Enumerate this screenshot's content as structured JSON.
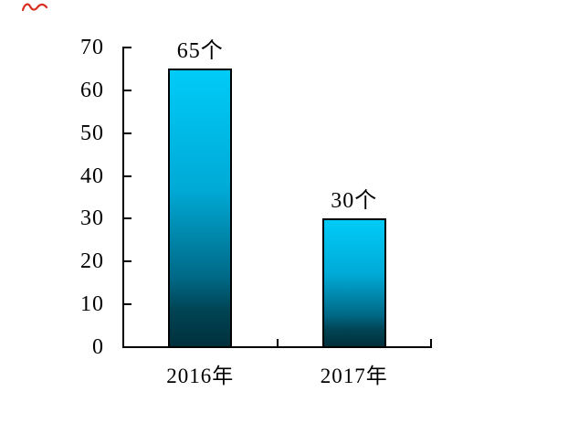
{
  "chart_data": {
    "type": "bar",
    "categories": [
      "2016年",
      "2017年"
    ],
    "values": [
      65,
      30
    ],
    "value_labels": [
      "65个",
      "30个"
    ],
    "unit": "个",
    "y_tick_labels": [
      "70",
      "60",
      "50",
      "40",
      "30",
      "20",
      "10",
      "0"
    ],
    "ylim": [
      0,
      70
    ],
    "y_tick_step": 10,
    "grid": "off",
    "legend": "none",
    "bar_border_color": "#000000",
    "bar_gradient_top": "#00CBF8",
    "bar_gradient_bottom": "#00303C",
    "axis_color": "#000000",
    "text_color": "#000000"
  },
  "decorations": {
    "red_pen_mark_color": "#D92C1E"
  }
}
